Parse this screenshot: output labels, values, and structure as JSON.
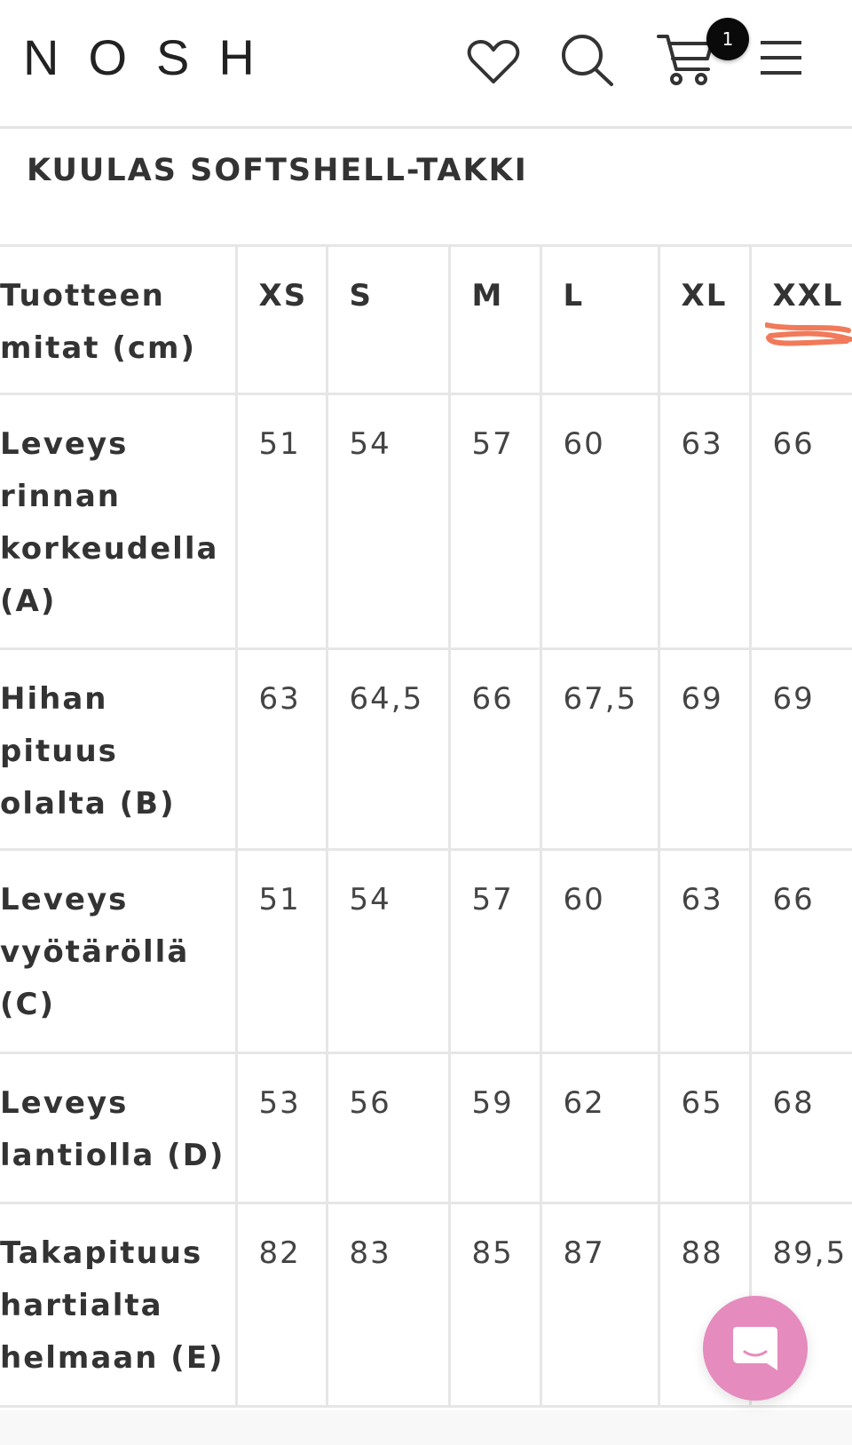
{
  "header": {
    "logo": "NOSH",
    "icons": [
      "heart-icon",
      "search-icon",
      "cart-icon",
      "menu-icon"
    ],
    "cart_count": "1"
  },
  "product_title": "KUULAS SOFTSHELL-TAKKI",
  "size_table": {
    "header": [
      "Tuotteen mitat (cm)",
      "XS",
      "S",
      "M",
      "L",
      "XL",
      "XXL"
    ],
    "rows": [
      [
        "Leveys rinnan korkeudella (A)",
        "51",
        "54",
        "57",
        "60",
        "63",
        "66"
      ],
      [
        "Hihan pituus olalta (B)",
        "63",
        "64,5",
        "66",
        "67,5",
        "69",
        "69"
      ],
      [
        "Leveys vyötäröllä (C)",
        "51",
        "54",
        "57",
        "60",
        "63",
        "66"
      ],
      [
        "Leveys lantiolla (D)",
        "53",
        "56",
        "59",
        "62",
        "65",
        "68"
      ],
      [
        "Takapituus hartialta helmaan (E)",
        "82",
        "83",
        "85",
        "87",
        "88",
        "89,5"
      ]
    ],
    "highlighted_size": "XXL",
    "highlight_color": "#f07a5a"
  },
  "chat": {
    "icon": "chat-icon",
    "color": "#e58bbd"
  }
}
